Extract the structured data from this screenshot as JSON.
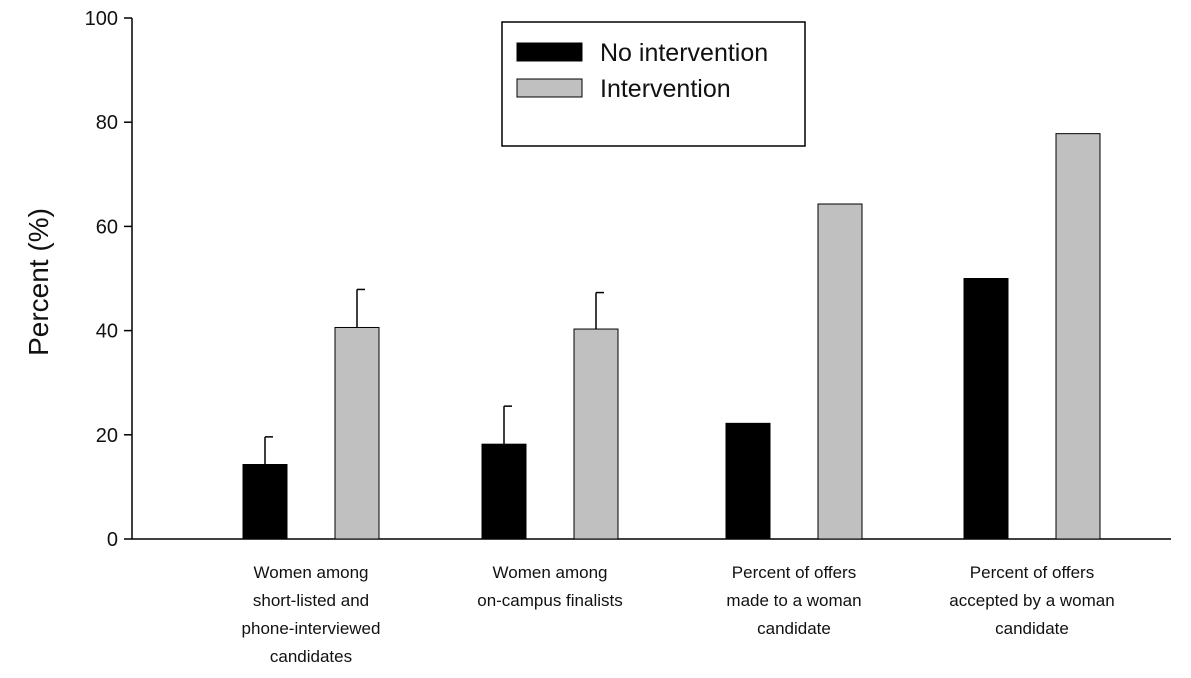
{
  "chart_data": {
    "type": "bar",
    "title": "",
    "xlabel": "",
    "ylabel": "Percent (%)",
    "ylim": [
      0,
      100
    ],
    "yticks": [
      "0",
      "20",
      "40",
      "60",
      "80",
      "100"
    ],
    "grid": false,
    "legend_position": "top-center",
    "categories": [
      [
        "Women among",
        "short-listed and",
        "phone-interviewed",
        "candidates"
      ],
      [
        "Women among",
        "on-campus finalists"
      ],
      [
        "Percent of offers",
        "made to a woman",
        "candidate"
      ],
      [
        "Percent of offers",
        "accepted by a woman",
        "candidate"
      ]
    ],
    "series": [
      {
        "name": "No intervention",
        "color": "#000000",
        "values": [
          14.3,
          18.2,
          22.2,
          50.0
        ],
        "error_plus": [
          5.3,
          7.3,
          null,
          null
        ]
      },
      {
        "name": "Intervention",
        "color": "#c0c0c0",
        "values": [
          40.6,
          40.3,
          64.3,
          77.8
        ],
        "error_plus": [
          7.3,
          7.0,
          null,
          null
        ]
      }
    ]
  }
}
